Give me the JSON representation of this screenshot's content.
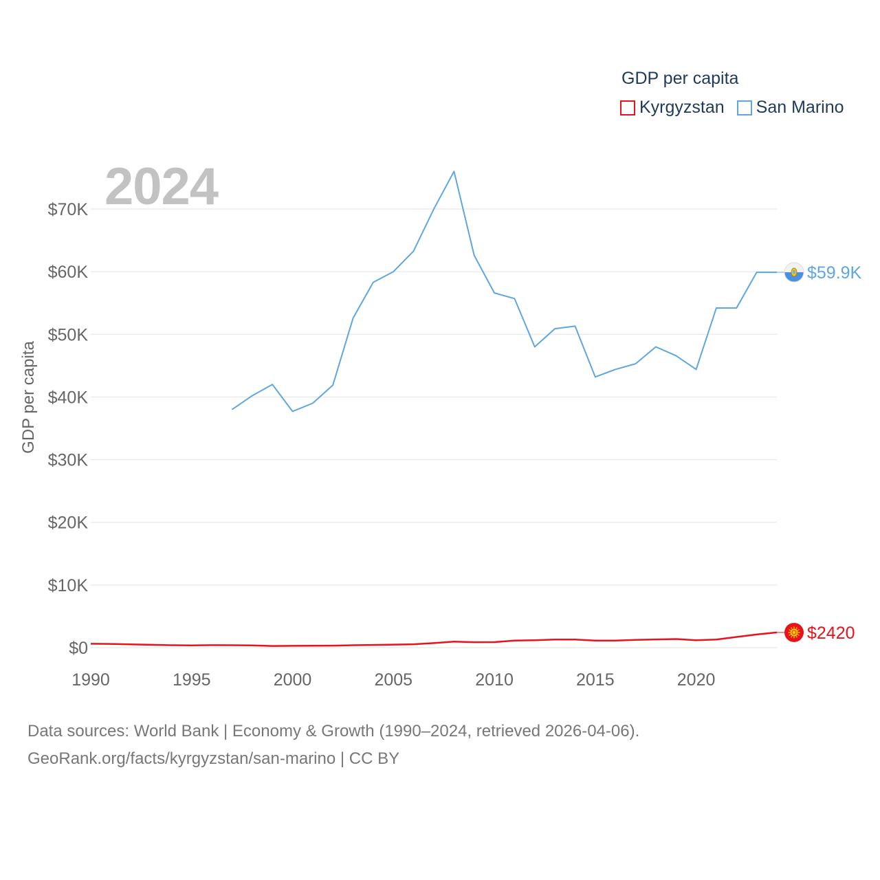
{
  "chart_data": {
    "type": "line",
    "year_label": "2024",
    "legend_title": "GDP per capita",
    "ylabel": "GDP per capita",
    "ylim": [
      0,
      75000
    ],
    "xlim": [
      1990,
      2024
    ],
    "y_ticks": [
      0,
      10000,
      20000,
      30000,
      40000,
      50000,
      60000,
      70000
    ],
    "y_tick_labels": [
      "$0",
      "$10K",
      "$20K",
      "$30K",
      "$40K",
      "$50K",
      "$60K",
      "$70K"
    ],
    "x_ticks": [
      1990,
      1995,
      2000,
      2005,
      2010,
      2015,
      2020
    ],
    "x_tick_labels": [
      "1990",
      "1995",
      "2000",
      "2005",
      "2010",
      "2015",
      "2020"
    ],
    "series": [
      {
        "name": "Kyrgyzstan",
        "color": "#e8121c",
        "end_label": "$2420",
        "flag_icon": "kyrgyzstan-flag-icon",
        "x": [
          1990,
          1991,
          1992,
          1993,
          1994,
          1995,
          1996,
          1997,
          1998,
          1999,
          2000,
          2001,
          2002,
          2003,
          2004,
          2005,
          2006,
          2007,
          2008,
          2009,
          2010,
          2011,
          2012,
          2013,
          2014,
          2015,
          2016,
          2017,
          2018,
          2019,
          2020,
          2021,
          2022,
          2023,
          2024
        ],
        "values": [
          610,
          590,
          520,
          450,
          380,
          360,
          390,
          380,
          350,
          260,
          280,
          310,
          320,
          380,
          430,
          480,
          540,
          720,
          970,
          870,
          880,
          1120,
          1180,
          1280,
          1280,
          1120,
          1120,
          1240,
          1310,
          1370,
          1180,
          1300,
          1700,
          2100,
          2420
        ]
      },
      {
        "name": "San Marino",
        "color": "#5fa6e0",
        "end_label": "$59.9K",
        "flag_icon": "san-marino-flag-icon",
        "x": [
          1997,
          1998,
          1999,
          2000,
          2001,
          2002,
          2003,
          2004,
          2005,
          2006,
          2007,
          2008,
          2009,
          2010,
          2011,
          2012,
          2013,
          2014,
          2015,
          2016,
          2017,
          2018,
          2019,
          2020,
          2021,
          2022,
          2023,
          2024
        ],
        "values": [
          38000,
          40200,
          42000,
          37700,
          39000,
          41900,
          52600,
          58300,
          60000,
          63300,
          70000,
          76000,
          62600,
          56600,
          55700,
          48000,
          50900,
          51300,
          43200,
          44400,
          45300,
          48000,
          46600,
          44400,
          54200,
          54200,
          59900,
          59900
        ]
      }
    ]
  },
  "footer": {
    "line1": "Data sources: World Bank | Economy & Growth (1990–2024, retrieved 2026-04-06).",
    "line2": "GeoRank.org/facts/kyrgyzstan/san-marino | CC BY"
  }
}
